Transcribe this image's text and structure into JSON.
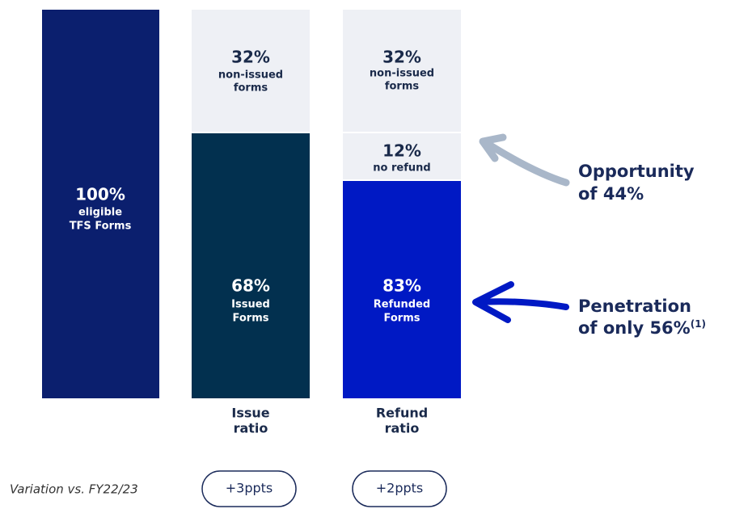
{
  "columns": [
    {
      "segments": [
        {
          "value": "100%",
          "lines": [
            "eligible",
            "TFS Forms"
          ]
        }
      ]
    },
    {
      "segments": [
        {
          "value": "32%",
          "lines": [
            "non-issued",
            "forms"
          ]
        },
        {
          "value": "68%",
          "lines": [
            "Issued",
            "Forms"
          ]
        }
      ],
      "caption": [
        "Issue",
        "ratio"
      ]
    },
    {
      "segments": [
        {
          "value": "32%",
          "lines": [
            "non-issued",
            "forms"
          ]
        },
        {
          "value": "12%",
          "lines": [
            "no refund"
          ]
        },
        {
          "value": "83%",
          "lines": [
            "Refunded",
            "Forms"
          ]
        }
      ],
      "caption": [
        "Refund",
        "ratio"
      ]
    }
  ],
  "annotations": [
    {
      "lines": [
        "Opportunity",
        "of 44%"
      ]
    },
    {
      "lines": [
        "Penetration",
        "of only 56%"
      ],
      "note": "(1)"
    }
  ],
  "variation": {
    "label": "Variation vs. FY22/23",
    "pills": [
      "+3ppts",
      "+2ppts"
    ]
  }
}
